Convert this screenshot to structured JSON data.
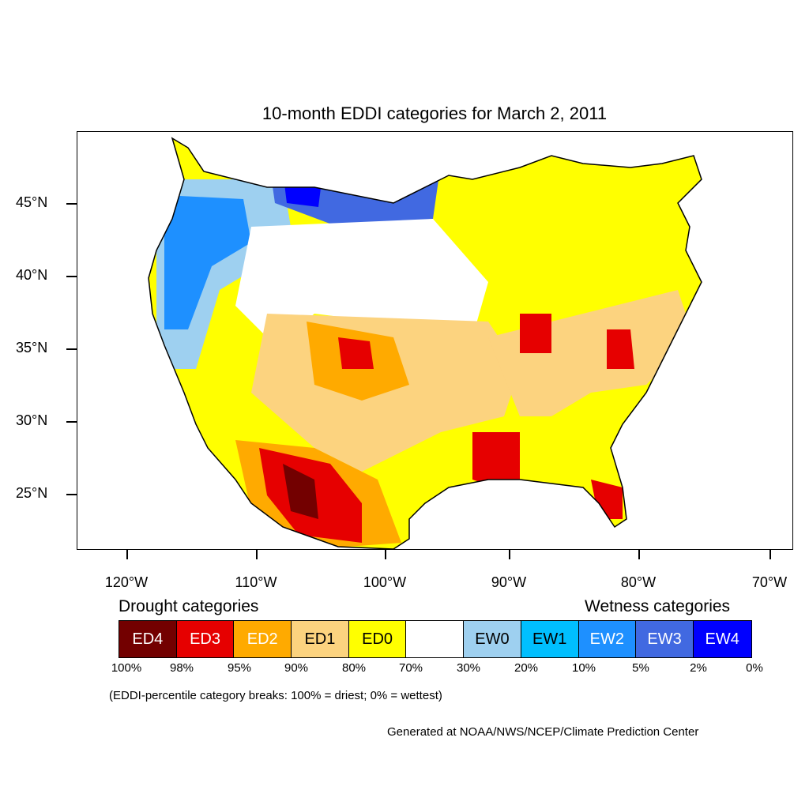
{
  "title": "10-month EDDI categories for March 2, 2011",
  "lat_labels": [
    "45°N",
    "40°N",
    "35°N",
    "30°N",
    "25°N"
  ],
  "lon_labels": [
    "120°W",
    "110°W",
    "100°W",
    "90°W",
    "80°W",
    "70°W"
  ],
  "legend": {
    "drought_heading": "Drought categories",
    "wetness_heading": "Wetness categories",
    "categories": [
      {
        "label": "ED4",
        "color": "#730000",
        "text_color": "#ffffff"
      },
      {
        "label": "ED3",
        "color": "#e60000",
        "text_color": "#ffffff"
      },
      {
        "label": "ED2",
        "color": "#ffaa00",
        "text_color": "#ffffff"
      },
      {
        "label": "ED1",
        "color": "#fcd37f",
        "text_color": "#000000"
      },
      {
        "label": "ED0",
        "color": "#ffff00",
        "text_color": "#000000"
      },
      {
        "label": "",
        "color": "#ffffff",
        "text_color": "#000000"
      },
      {
        "label": "EW0",
        "color": "#9ed0f0",
        "text_color": "#000000"
      },
      {
        "label": "EW1",
        "color": "#00bfff",
        "text_color": "#000000"
      },
      {
        "label": "EW2",
        "color": "#1e90ff",
        "text_color": "#ffffff"
      },
      {
        "label": "EW3",
        "color": "#4169e1",
        "text_color": "#ffffff"
      },
      {
        "label": "EW4",
        "color": "#0000ff",
        "text_color": "#ffffff"
      }
    ],
    "breaks": [
      "100%",
      "98%",
      "95%",
      "90%",
      "80%",
      "70%",
      "30%",
      "20%",
      "10%",
      "5%",
      "2%",
      "0%"
    ]
  },
  "note": "(EDDI-percentile category breaks: 100% = driest; 0% = wettest)",
  "credit": "Generated at NOAA/NWS/NCEP/Climate Prediction Center"
}
